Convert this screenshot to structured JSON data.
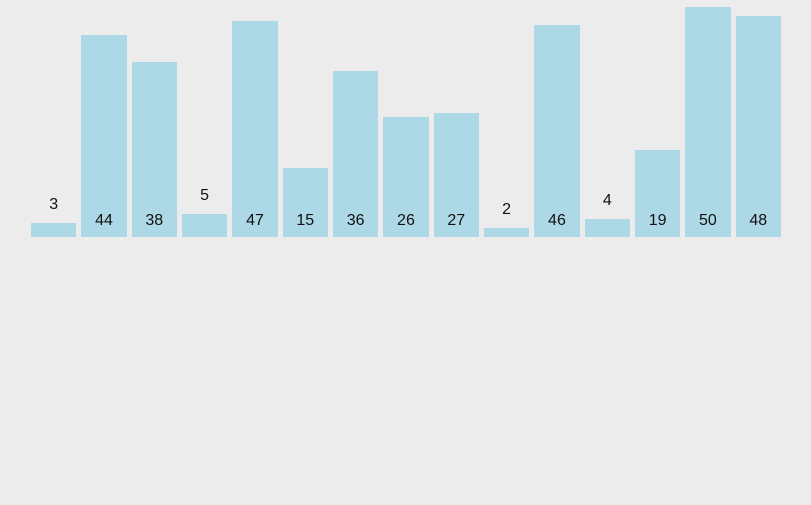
{
  "chart_data": {
    "type": "bar",
    "values": [
      3,
      44,
      38,
      5,
      47,
      15,
      36,
      26,
      27,
      2,
      46,
      4,
      19,
      50,
      48
    ],
    "title": "",
    "xlabel": "",
    "ylabel": "",
    "ylim": [
      0,
      50
    ],
    "axes_visible": false,
    "grid": false,
    "legend": false,
    "data_labels_visible": true,
    "label_position_rule": "inside bar near bottom for tall bars; above bar for short bars (2,3,4,5)",
    "bar_color": "#add8e6",
    "background_color": "#ececec",
    "label_color": "#111111"
  }
}
